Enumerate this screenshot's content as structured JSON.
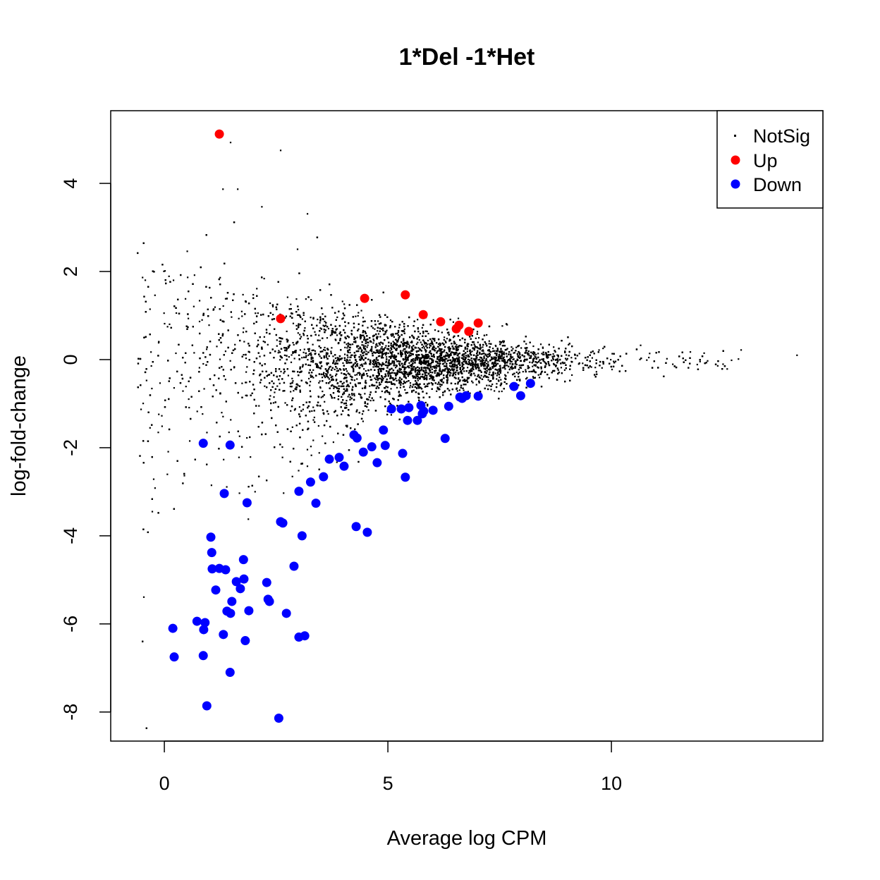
{
  "chart_data": {
    "type": "scatter",
    "title": "1*Del -1*Het",
    "xlabel": "Average log CPM",
    "ylabel": "log-fold-change",
    "xlim": [
      -1.2,
      14.73
    ],
    "ylim": [
      -8.66,
      5.65
    ],
    "xticks": [
      0,
      5,
      10
    ],
    "yticks": [
      -8,
      -6,
      -4,
      -2,
      0,
      2,
      4
    ],
    "xtick_labels": [
      "0",
      "5",
      "10"
    ],
    "ytick_labels": [
      "-8",
      "-6",
      "-4",
      "-2",
      "0",
      "2",
      "4"
    ],
    "grid": false,
    "legend": {
      "placement": "top-right",
      "entries": [
        "NotSig",
        "Up",
        "Down"
      ]
    },
    "series": [
      {
        "name": "NotSig",
        "color": "#000000",
        "note_points": [
          [
            1.48,
            4.93
          ],
          [
            2.6,
            4.75
          ],
          [
            1.31,
            3.87
          ],
          [
            1.64,
            3.87
          ],
          [
            -0.46,
            -5.39
          ],
          [
            14.15,
            0.1
          ],
          [
            3.2,
            3.31
          ],
          [
            2.18,
            3.47
          ],
          [
            12.9,
            0.22
          ],
          [
            12.5,
            0.2
          ]
        ]
      },
      {
        "name": "Up",
        "color": "#ff0000",
        "points": [
          [
            1.23,
            5.12
          ],
          [
            2.6,
            0.93
          ],
          [
            4.48,
            1.39
          ],
          [
            5.39,
            1.47
          ],
          [
            5.79,
            1.02
          ],
          [
            6.18,
            0.86
          ],
          [
            6.53,
            0.7
          ],
          [
            6.59,
            0.78
          ],
          [
            6.81,
            0.64
          ],
          [
            7.02,
            0.83
          ]
        ]
      },
      {
        "name": "Down",
        "color": "#0000ff",
        "points": [
          [
            0.19,
            -6.1
          ],
          [
            0.22,
            -6.75
          ],
          [
            0.73,
            -5.94
          ],
          [
            0.87,
            -1.9
          ],
          [
            0.87,
            -6.72
          ],
          [
            0.88,
            -6.13
          ],
          [
            0.91,
            -5.97
          ],
          [
            0.95,
            -7.86
          ],
          [
            1.04,
            -4.03
          ],
          [
            1.06,
            -4.38
          ],
          [
            1.07,
            -4.75
          ],
          [
            1.15,
            -5.23
          ],
          [
            1.23,
            -4.74
          ],
          [
            1.34,
            -3.04
          ],
          [
            1.32,
            -6.24
          ],
          [
            1.37,
            -4.77
          ],
          [
            1.4,
            -5.71
          ],
          [
            1.47,
            -1.94
          ],
          [
            1.47,
            -7.1
          ],
          [
            1.48,
            -5.76
          ],
          [
            1.51,
            -5.49
          ],
          [
            1.61,
            -5.04
          ],
          [
            1.7,
            -5.2
          ],
          [
            1.77,
            -4.54
          ],
          [
            1.78,
            -4.98
          ],
          [
            1.81,
            -6.38
          ],
          [
            1.85,
            -3.25
          ],
          [
            1.89,
            -5.7
          ],
          [
            2.29,
            -5.06
          ],
          [
            2.32,
            -5.44
          ],
          [
            2.35,
            -5.49
          ],
          [
            2.56,
            -8.14
          ],
          [
            2.6,
            -3.68
          ],
          [
            2.65,
            -3.71
          ],
          [
            2.73,
            -5.76
          ],
          [
            2.9,
            -4.69
          ],
          [
            3.01,
            -2.99
          ],
          [
            3.01,
            -6.3
          ],
          [
            3.08,
            -4.0
          ],
          [
            3.14,
            -6.27
          ],
          [
            3.27,
            -2.78
          ],
          [
            3.39,
            -3.26
          ],
          [
            3.56,
            -2.66
          ],
          [
            3.69,
            -2.26
          ],
          [
            3.91,
            -2.22
          ],
          [
            4.02,
            -2.42
          ],
          [
            4.24,
            -1.71
          ],
          [
            4.29,
            -3.79
          ],
          [
            4.31,
            -1.78
          ],
          [
            4.45,
            -2.1
          ],
          [
            4.54,
            -3.92
          ],
          [
            4.64,
            -1.98
          ],
          [
            4.76,
            -2.34
          ],
          [
            4.9,
            -1.6
          ],
          [
            4.94,
            -1.95
          ],
          [
            5.08,
            -1.12
          ],
          [
            5.3,
            -1.12
          ],
          [
            5.33,
            -2.13
          ],
          [
            5.39,
            -2.67
          ],
          [
            5.44,
            -1.38
          ],
          [
            5.47,
            -1.09
          ],
          [
            5.66,
            -1.38
          ],
          [
            5.74,
            -1.04
          ],
          [
            5.77,
            -1.23
          ],
          [
            5.8,
            -1.17
          ],
          [
            6.01,
            -1.15
          ],
          [
            6.28,
            -1.79
          ],
          [
            6.36,
            -1.06
          ],
          [
            6.61,
            -0.85
          ],
          [
            6.66,
            -0.88
          ],
          [
            6.75,
            -0.82
          ],
          [
            7.02,
            -0.83
          ],
          [
            7.82,
            -0.61
          ],
          [
            7.97,
            -0.82
          ],
          [
            8.19,
            -0.54
          ]
        ]
      }
    ]
  }
}
